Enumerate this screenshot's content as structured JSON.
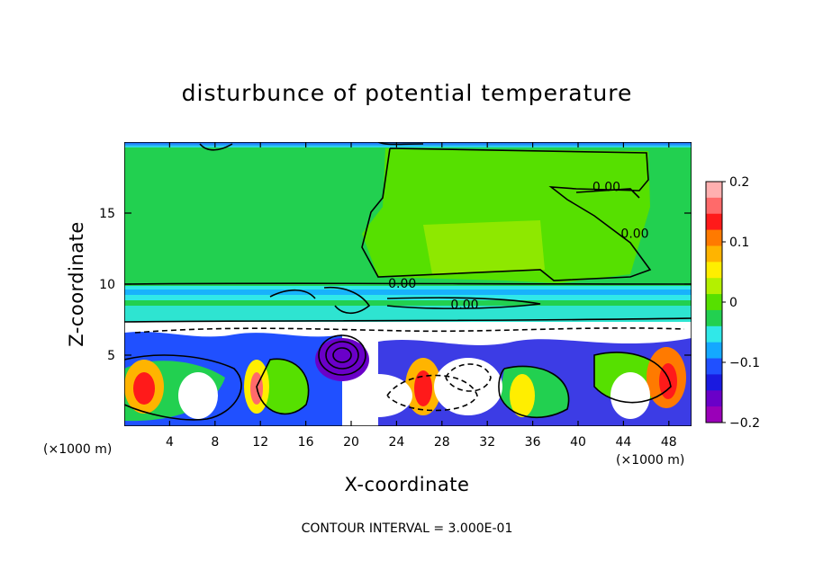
{
  "chart_data": {
    "type": "heatmap",
    "title": "disturbunce of potential temperature",
    "xlabel": "X-coordinate",
    "ylabel": "Z-coordinate",
    "x_unit": "(×1000 m)",
    "x_unit_right": "(×1000 m)",
    "xlim": [
      0,
      50
    ],
    "ylim": [
      0,
      20
    ],
    "x_ticks": [
      4,
      8,
      12,
      16,
      20,
      24,
      28,
      32,
      36,
      40,
      44,
      48
    ],
    "y_ticks": [
      5,
      10,
      15
    ],
    "colorbar": {
      "range": [
        -0.2,
        0.2
      ],
      "tick_values": [
        0.2,
        0.1,
        0,
        -0.1,
        -0.2
      ],
      "tick_labels": [
        "0.2",
        "0.1",
        "0",
        "−0.1",
        "−0.2"
      ],
      "colors": [
        "#ffb0b0",
        "#ff6a6a",
        "#ff1a1a",
        "#ff7a00",
        "#ffb400",
        "#ffee00",
        "#b4f000",
        "#56e000",
        "#22d050",
        "#30e8e8",
        "#14a8ff",
        "#2050ff",
        "#1a1ae0",
        "#6a00c8",
        "#9a00b8"
      ]
    },
    "contour_labels": [
      {
        "text": "0.00",
        "x": 42.5,
        "z": 16.8
      },
      {
        "text": "0.00",
        "x": 45.0,
        "z": 13.5
      },
      {
        "text": "0.00",
        "x": 24.5,
        "z": 10.0
      },
      {
        "text": "0.00",
        "x": 30.0,
        "z": 8.5
      }
    ],
    "contour_interval_text": "CONTOUR INTERVAL = 3.000E-01",
    "grid": false
  }
}
